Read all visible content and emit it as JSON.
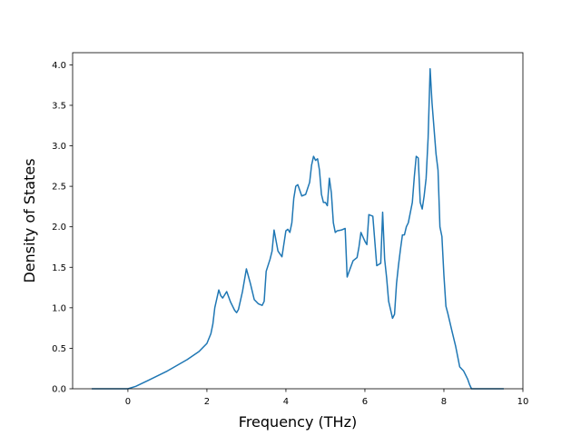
{
  "chart_data": {
    "type": "line",
    "title": "",
    "xlabel": "Frequency (THz)",
    "ylabel": "Density of States",
    "xlim": [
      -1.4,
      10
    ],
    "ylim": [
      0,
      4.15
    ],
    "xticks": [
      0,
      2,
      4,
      6,
      8,
      10
    ],
    "xtick_labels": [
      "0",
      "2",
      "4",
      "6",
      "8",
      "10"
    ],
    "yticks": [
      0.0,
      0.5,
      1.0,
      1.5,
      2.0,
      2.5,
      3.0,
      3.5,
      4.0
    ],
    "ytick_labels": [
      "0.0",
      "0.5",
      "1.0",
      "1.5",
      "2.0",
      "2.5",
      "3.0",
      "3.5",
      "4.0"
    ],
    "grid": false,
    "line_color": "#1f77b4",
    "series": [
      {
        "x": [
          -0.9,
          0.0,
          0.2,
          0.5,
          1.0,
          1.5,
          1.8,
          2.0,
          2.1,
          2.15,
          2.2,
          2.3,
          2.35,
          2.4,
          2.5,
          2.6,
          2.7,
          2.75,
          2.8,
          2.9,
          3.0,
          3.1,
          3.2,
          3.3,
          3.4,
          3.45,
          3.5,
          3.6,
          3.65,
          3.7,
          3.8,
          3.9,
          4.0,
          4.05,
          4.1,
          4.15,
          4.2,
          4.25,
          4.3,
          4.4,
          4.5,
          4.6,
          4.65,
          4.7,
          4.75,
          4.8,
          4.85,
          4.9,
          4.95,
          5.0,
          5.05,
          5.1,
          5.15,
          5.2,
          5.25,
          5.3,
          5.4,
          5.5,
          5.55,
          5.6,
          5.7,
          5.8,
          5.85,
          5.9,
          6.0,
          6.05,
          6.1,
          6.2,
          6.3,
          6.4,
          6.45,
          6.5,
          6.55,
          6.6,
          6.7,
          6.75,
          6.8,
          6.85,
          6.9,
          6.95,
          7.0,
          7.05,
          7.1,
          7.2,
          7.25,
          7.3,
          7.35,
          7.4,
          7.45,
          7.5,
          7.55,
          7.6,
          7.65,
          7.7,
          7.8,
          7.85,
          7.9,
          7.95,
          8.0,
          8.05,
          8.1,
          8.2,
          8.3,
          8.4,
          8.5,
          8.55,
          8.6,
          8.65,
          8.7,
          9.0,
          9.5
        ],
        "y": [
          0.0,
          0.0,
          0.03,
          0.1,
          0.22,
          0.36,
          0.46,
          0.56,
          0.68,
          0.8,
          1.0,
          1.22,
          1.15,
          1.12,
          1.2,
          1.07,
          0.97,
          0.94,
          0.98,
          1.2,
          1.48,
          1.3,
          1.1,
          1.05,
          1.03,
          1.08,
          1.45,
          1.6,
          1.7,
          1.96,
          1.7,
          1.63,
          1.95,
          1.97,
          1.93,
          2.05,
          2.35,
          2.5,
          2.52,
          2.38,
          2.4,
          2.55,
          2.76,
          2.87,
          2.82,
          2.84,
          2.7,
          2.4,
          2.3,
          2.3,
          2.26,
          2.6,
          2.42,
          2.05,
          1.93,
          1.95,
          1.96,
          1.98,
          1.38,
          1.45,
          1.58,
          1.62,
          1.75,
          1.93,
          1.82,
          1.78,
          2.15,
          2.13,
          1.52,
          1.55,
          2.18,
          1.6,
          1.37,
          1.08,
          0.87,
          0.92,
          1.3,
          1.52,
          1.72,
          1.9,
          1.9,
          2.0,
          2.05,
          2.3,
          2.62,
          2.87,
          2.85,
          2.3,
          2.22,
          2.38,
          2.6,
          3.1,
          3.95,
          3.53,
          2.9,
          2.7,
          2.0,
          1.88,
          1.4,
          1.02,
          0.93,
          0.72,
          0.52,
          0.27,
          0.22,
          0.17,
          0.12,
          0.05,
          0.0,
          0.0,
          0.0
        ]
      }
    ]
  }
}
